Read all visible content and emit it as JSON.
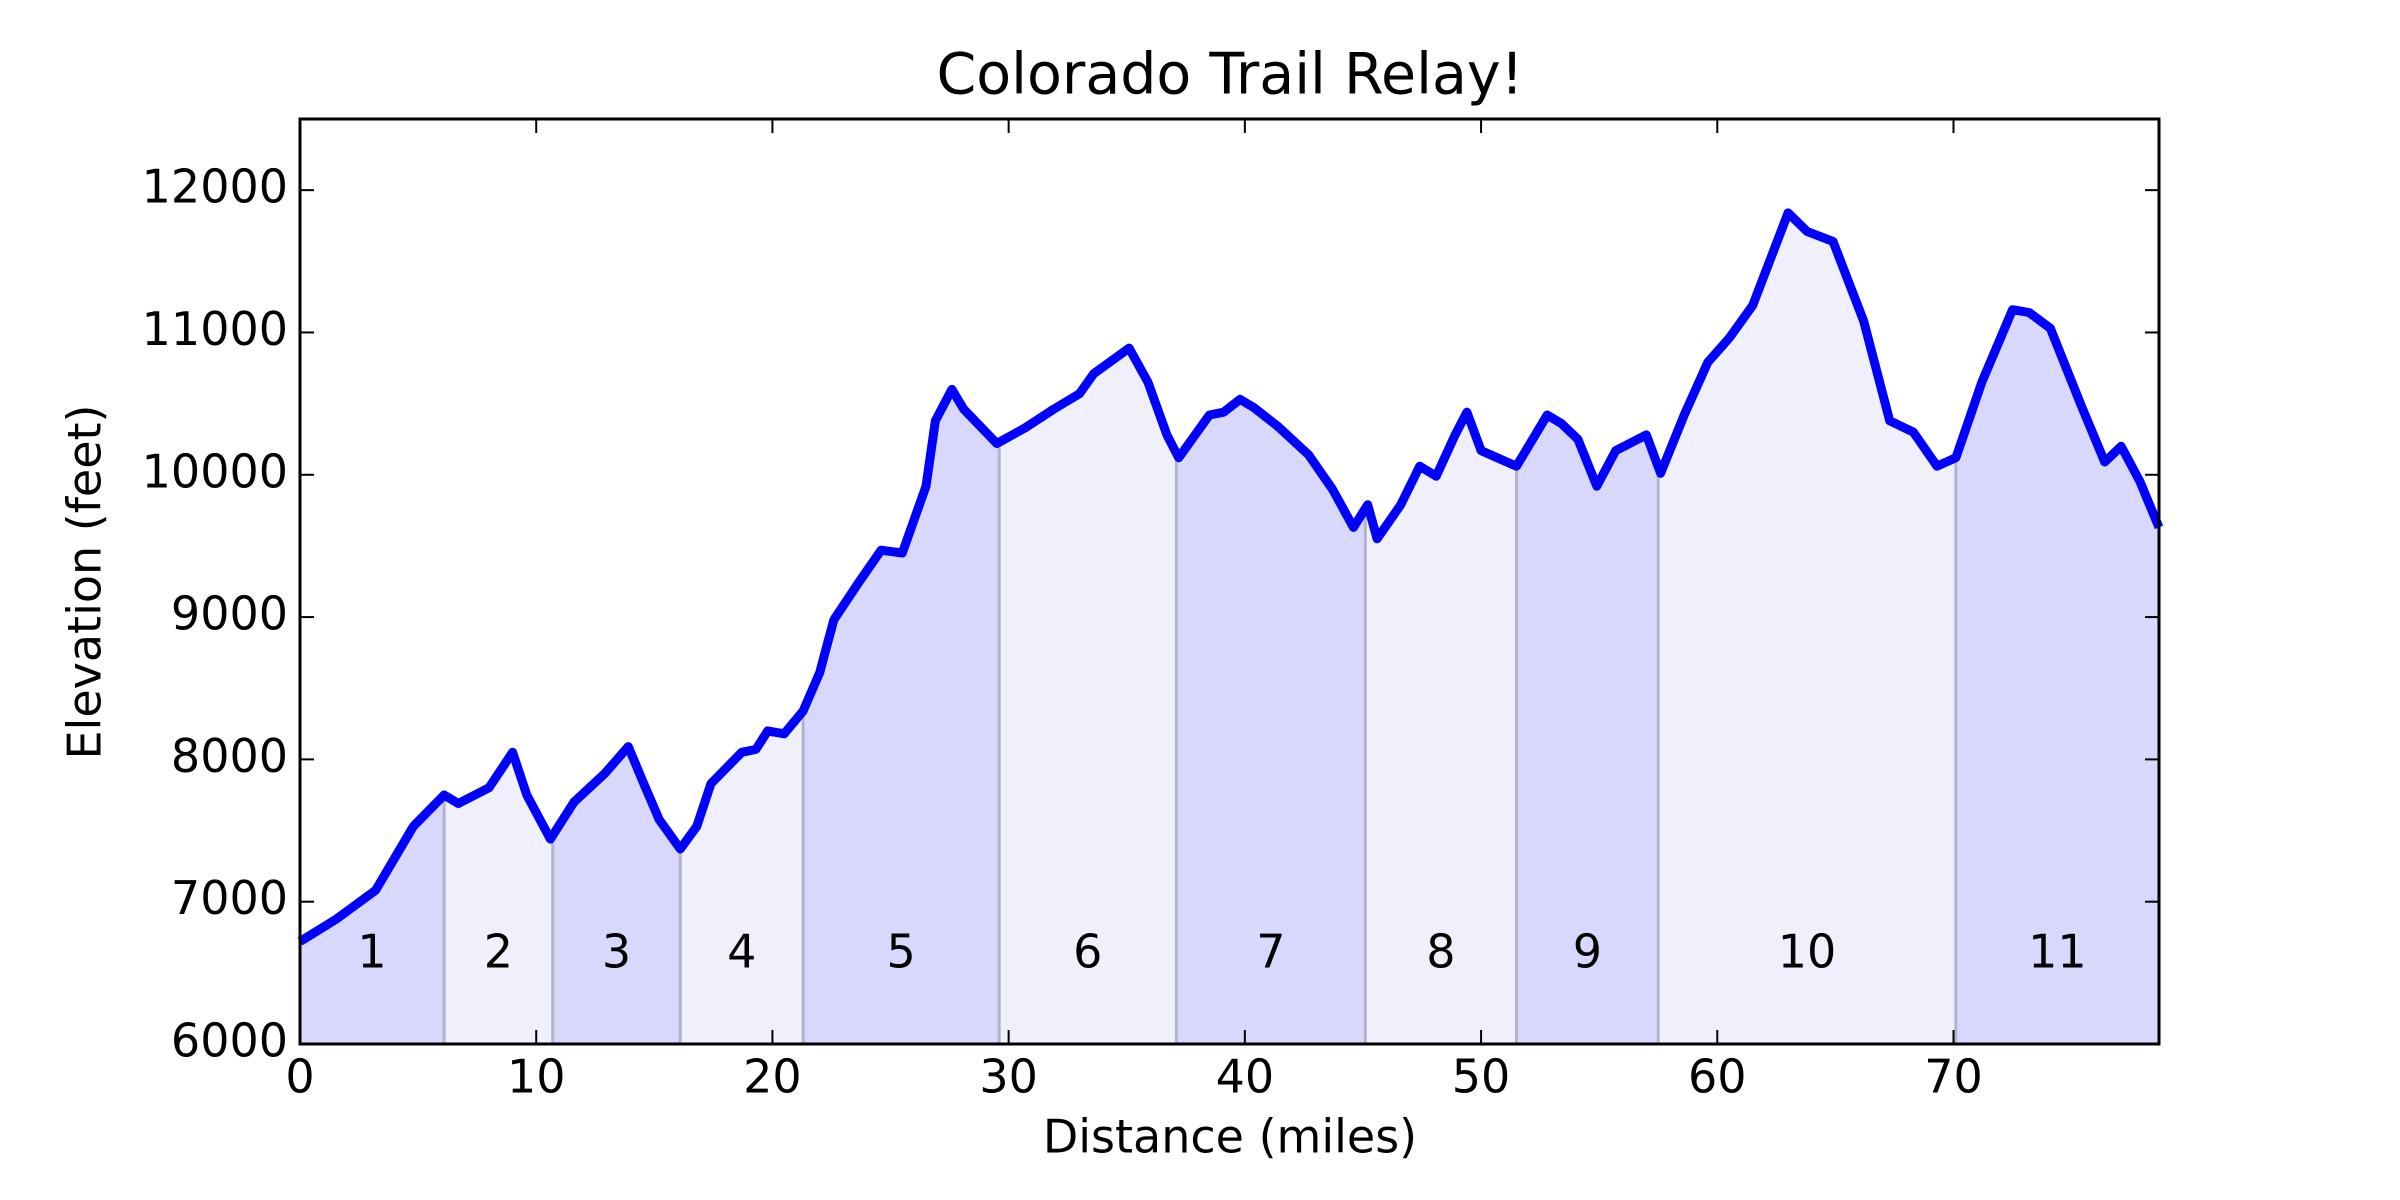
{
  "chart_data": {
    "type": "line",
    "title": "Colorado Trail Relay!",
    "x_label": "Distance (miles)",
    "y_label": "Elevation (feet)",
    "x": [
      0,
      1.56,
      3.2,
      4.8,
      6.1,
      6.7,
      8.0,
      9.0,
      9.6,
      10.6,
      11.6,
      12.9,
      13.9,
      14.5,
      15.2,
      16.1,
      16.8,
      17.4,
      18.7,
      19.3,
      19.8,
      20.5,
      21.3,
      22.0,
      22.6,
      23.6,
      24.6,
      25.5,
      26.5,
      26.9,
      27.6,
      28.1,
      29.5,
      30.7,
      31.9,
      33.0,
      33.6,
      35.1,
      35.9,
      36.7,
      37.2,
      38.5,
      39.1,
      39.8,
      40.4,
      41.4,
      42.7,
      43.7,
      44.6,
      45.2,
      45.6,
      46.6,
      47.4,
      48.1,
      48.9,
      49.4,
      50.0,
      51.5,
      52.8,
      53.4,
      54.1,
      54.9,
      55.7,
      57.0,
      57.6,
      58.6,
      59.6,
      60.5,
      61.5,
      63.0,
      63.8,
      64.9,
      66.2,
      67.3,
      68.3,
      69.3,
      70.1,
      71.2,
      72.5,
      73.2,
      74.1,
      75.4,
      76.4,
      77.1,
      77.9,
      78.7
    ],
    "series": [
      {
        "name": "Elevation",
        "color": "#0000ff",
        "values": [
          6720,
          6880,
          7080,
          7530,
          7750,
          7690,
          7800,
          8050,
          7750,
          7440,
          7700,
          7900,
          8090,
          7850,
          7580,
          7370,
          7530,
          7830,
          8050,
          8070,
          8200,
          8180,
          8340,
          8610,
          8980,
          9230,
          9470,
          9450,
          9920,
          10380,
          10600,
          10460,
          10220,
          10330,
          10460,
          10570,
          10710,
          10890,
          10650,
          10280,
          10120,
          10420,
          10440,
          10530,
          10470,
          10340,
          10140,
          9900,
          9630,
          9790,
          9550,
          9790,
          10060,
          9990,
          10280,
          10440,
          10170,
          10060,
          10420,
          10360,
          10250,
          9920,
          10170,
          10280,
          10010,
          10420,
          10790,
          10960,
          11190,
          11840,
          11710,
          11640,
          11080,
          10380,
          10300,
          10060,
          10120,
          10650,
          11160,
          11140,
          11030,
          10490,
          10090,
          10200,
          9950,
          9630
        ]
      }
    ],
    "segment_boundaries": [
      6.1,
      10.7,
      16.1,
      21.3,
      29.6,
      37.1,
      45.1,
      51.5,
      57.5,
      70.1
    ],
    "segment_labels": [
      "1",
      "2",
      "3",
      "4",
      "5",
      "6",
      "7",
      "8",
      "9",
      "10",
      "11"
    ],
    "segment_colors": [
      "#d8d8fc",
      "#f0f0fc"
    ],
    "xlim": [
      0,
      78.7
    ],
    "ylim": [
      6000,
      12500
    ],
    "xticks": [
      0,
      10,
      20,
      30,
      40,
      50,
      60,
      70
    ],
    "yticks": [
      6000,
      7000,
      8000,
      9000,
      10000,
      11000,
      12000
    ],
    "grid": false
  }
}
